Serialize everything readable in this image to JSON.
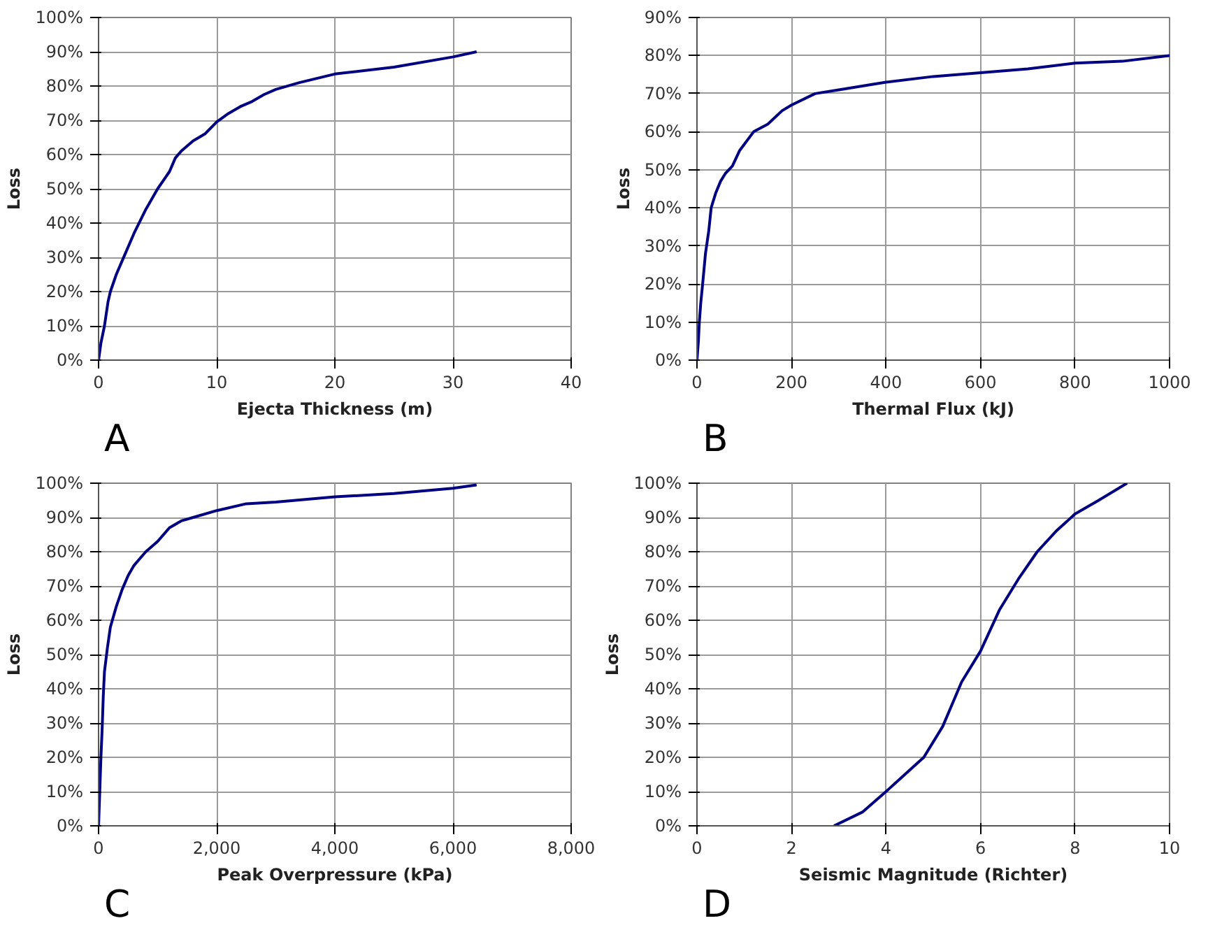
{
  "chart_data": [
    {
      "type": "line",
      "xlabel": "Ejecta Thickness (m)",
      "ylabel": "Loss",
      "annotations": [
        "A"
      ],
      "grid": true,
      "xlim": [
        0,
        40
      ],
      "ylim": [
        0,
        100
      ],
      "xticks": [
        0,
        10,
        20,
        30,
        40
      ],
      "yticks": [
        {
          "value": 0,
          "label": "0%"
        },
        {
          "value": 10,
          "label": "10%"
        },
        {
          "value": 20,
          "label": "20%"
        },
        {
          "value": 30,
          "label": "30%"
        },
        {
          "value": 40,
          "label": "40%"
        },
        {
          "value": 50,
          "label": "50%"
        },
        {
          "value": 60,
          "label": "60%"
        },
        {
          "value": 70,
          "label": "70%"
        },
        {
          "value": 80,
          "label": "80%"
        },
        {
          "value": 90,
          "label": "90%"
        },
        {
          "value": 100,
          "label": "100%"
        }
      ],
      "x": [
        0,
        0.2,
        0.5,
        0.8,
        1,
        1.5,
        2,
        3,
        4,
        5,
        6,
        6.5,
        7,
        8,
        9,
        10,
        11,
        12,
        13,
        14,
        15,
        17,
        20,
        25,
        30,
        32
      ],
      "series": [
        {
          "color": "#000080",
          "values": [
            0,
            5,
            10,
            17,
            20,
            25,
            29,
            37,
            44,
            50,
            55,
            59,
            61,
            64,
            66,
            69.5,
            72,
            74,
            75.5,
            77.5,
            79,
            81,
            83.5,
            85.5,
            88.5,
            90
          ]
        }
      ]
    },
    {
      "type": "line",
      "xlabel": "Thermal Flux (kJ)",
      "ylabel": "Loss",
      "annotations": [
        "B"
      ],
      "grid": true,
      "xlim": [
        0,
        1000
      ],
      "ylim": [
        0,
        90
      ],
      "xticks": [
        0,
        200,
        400,
        600,
        800,
        1000
      ],
      "yticks": [
        {
          "value": 0,
          "label": "0%"
        },
        {
          "value": 10,
          "label": "10%"
        },
        {
          "value": 20,
          "label": "20%"
        },
        {
          "value": 30,
          "label": "30%"
        },
        {
          "value": 40,
          "label": "40%"
        },
        {
          "value": 50,
          "label": "50%"
        },
        {
          "value": 60,
          "label": "60%"
        },
        {
          "value": 70,
          "label": "70%"
        },
        {
          "value": 80,
          "label": "80%"
        },
        {
          "value": 90,
          "label": "90%"
        }
      ],
      "x": [
        0,
        3,
        5,
        8,
        12,
        18,
        25,
        30,
        40,
        50,
        60,
        75,
        90,
        120,
        150,
        180,
        200,
        250,
        300,
        400,
        500,
        600,
        700,
        800,
        900,
        1000
      ],
      "series": [
        {
          "color": "#000080",
          "values": [
            0,
            5,
            10,
            15,
            20,
            28,
            34,
            40,
            44,
            47,
            49,
            51,
            55,
            60,
            62,
            65.5,
            67,
            70,
            71,
            73,
            74.5,
            75.5,
            76.5,
            78,
            78.5,
            80
          ]
        }
      ]
    },
    {
      "type": "line",
      "xlabel": "Peak Overpressure (kPa)",
      "ylabel": "Loss",
      "annotations": [
        "C"
      ],
      "grid": true,
      "xlim": [
        0,
        8000
      ],
      "ylim": [
        0,
        100
      ],
      "xticks": [
        0,
        {
          "value": 2000,
          "label": "2,000"
        },
        {
          "value": 4000,
          "label": "4,000"
        },
        {
          "value": 6000,
          "label": "6,000"
        },
        {
          "value": 8000,
          "label": "8,000"
        }
      ],
      "yticks": [
        {
          "value": 0,
          "label": "0%"
        },
        {
          "value": 10,
          "label": "10%"
        },
        {
          "value": 20,
          "label": "20%"
        },
        {
          "value": 30,
          "label": "30%"
        },
        {
          "value": 40,
          "label": "40%"
        },
        {
          "value": 50,
          "label": "50%"
        },
        {
          "value": 60,
          "label": "60%"
        },
        {
          "value": 70,
          "label": "70%"
        },
        {
          "value": 80,
          "label": "80%"
        },
        {
          "value": 90,
          "label": "90%"
        },
        {
          "value": 100,
          "label": "100%"
        }
      ],
      "x": [
        0,
        20,
        40,
        60,
        80,
        100,
        150,
        200,
        300,
        400,
        500,
        600,
        700,
        800,
        1000,
        1200,
        1400,
        1600,
        2000,
        2500,
        3000,
        4000,
        5000,
        6000,
        6400
      ],
      "series": [
        {
          "color": "#000080",
          "values": [
            0,
            10,
            20,
            28,
            38,
            45,
            52,
            58,
            64,
            69,
            73,
            76,
            78,
            80,
            83,
            87,
            89,
            90,
            92,
            94,
            94.5,
            96,
            97,
            98.5,
            99.5
          ]
        }
      ]
    },
    {
      "type": "line",
      "xlabel": "Seismic Magnitude (Richter)",
      "ylabel": "Loss",
      "annotations": [
        "D"
      ],
      "grid": true,
      "xlim": [
        0,
        10
      ],
      "ylim": [
        0,
        100
      ],
      "xticks": [
        0,
        2,
        4,
        6,
        8,
        10
      ],
      "yticks": [
        {
          "value": 0,
          "label": "0%"
        },
        {
          "value": 10,
          "label": "10%"
        },
        {
          "value": 20,
          "label": "20%"
        },
        {
          "value": 30,
          "label": "30%"
        },
        {
          "value": 40,
          "label": "40%"
        },
        {
          "value": 50,
          "label": "50%"
        },
        {
          "value": 60,
          "label": "60%"
        },
        {
          "value": 70,
          "label": "70%"
        },
        {
          "value": 80,
          "label": "80%"
        },
        {
          "value": 90,
          "label": "90%"
        },
        {
          "value": 100,
          "label": "100%"
        }
      ],
      "x": [
        2.9,
        3.5,
        4,
        4.4,
        4.8,
        5.2,
        5.6,
        6,
        6.4,
        6.8,
        7.2,
        7.6,
        8,
        8.5,
        9.1
      ],
      "series": [
        {
          "color": "#000080",
          "values": [
            0,
            4,
            10,
            15,
            20,
            29,
            42,
            51,
            63,
            72,
            80,
            86,
            91,
            95,
            100
          ]
        }
      ]
    }
  ]
}
